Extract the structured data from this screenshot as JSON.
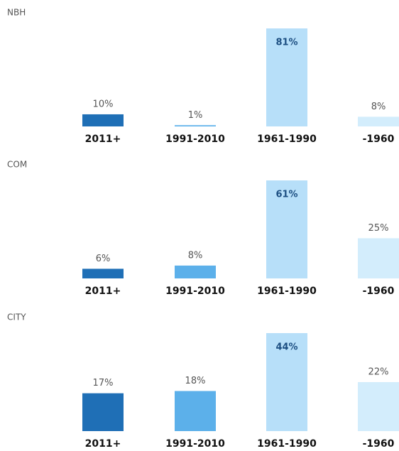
{
  "chart_data": [
    {
      "type": "bar",
      "title": "NBH",
      "categories": [
        "2011+",
        "1991-2010",
        "1961-1990",
        "-1960"
      ],
      "values": [
        10,
        1,
        81,
        8
      ],
      "value_labels": [
        "10%",
        "1%",
        "81%",
        "8%"
      ],
      "colors": [
        "#1f6fb6",
        "#5cb0ea",
        "#b7dff9",
        "#d3edfc"
      ]
    },
    {
      "type": "bar",
      "title": "COM",
      "categories": [
        "2011+",
        "1991-2010",
        "1961-1990",
        "-1960"
      ],
      "values": [
        6,
        8,
        61,
        25
      ],
      "value_labels": [
        "6%",
        "8%",
        "61%",
        "25%"
      ],
      "colors": [
        "#1f6fb6",
        "#5cb0ea",
        "#b7dff9",
        "#d3edfc"
      ]
    },
    {
      "type": "bar",
      "title": "CITY",
      "categories": [
        "2011+",
        "1991-2010",
        "1961-1990",
        "-1960"
      ],
      "values": [
        17,
        18,
        44,
        22
      ],
      "value_labels": [
        "17%",
        "18%",
        "44%",
        "22%"
      ],
      "colors": [
        "#1f6fb6",
        "#5cb0ea",
        "#b7dff9",
        "#d3edfc"
      ]
    }
  ]
}
